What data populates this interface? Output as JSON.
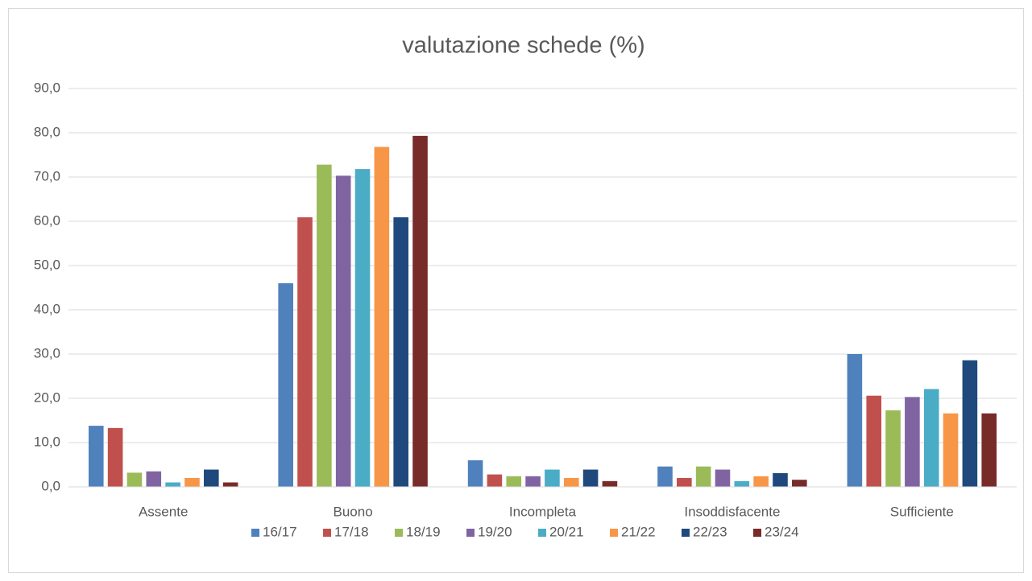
{
  "chart_data": {
    "type": "bar",
    "title": "valutazione schede (%)",
    "categories": [
      "Assente",
      "Buono",
      "Incompleta",
      "Insoddisfacente",
      "Sufficiente"
    ],
    "series": [
      {
        "name": "16/17",
        "color": "#4f81bd",
        "values": [
          13.8,
          46.0,
          6.0,
          4.6,
          30.0
        ]
      },
      {
        "name": "17/18",
        "color": "#c0504d",
        "values": [
          13.3,
          60.9,
          2.8,
          2.0,
          20.6
        ]
      },
      {
        "name": "18/19",
        "color": "#9bbb59",
        "values": [
          3.2,
          72.8,
          2.4,
          4.6,
          17.3
        ]
      },
      {
        "name": "19/20",
        "color": "#8064a2",
        "values": [
          3.5,
          70.3,
          2.4,
          3.9,
          20.3
        ]
      },
      {
        "name": "20/21",
        "color": "#4bacc6",
        "values": [
          1.0,
          71.8,
          3.9,
          1.3,
          22.1
        ]
      },
      {
        "name": "21/22",
        "color": "#f79646",
        "values": [
          2.0,
          76.8,
          2.0,
          2.4,
          16.6
        ]
      },
      {
        "name": "22/23",
        "color": "#1f497d",
        "values": [
          3.9,
          60.9,
          3.9,
          3.1,
          28.6
        ]
      },
      {
        "name": "23/24",
        "color": "#772c2a",
        "values": [
          1.0,
          79.3,
          1.3,
          1.6,
          16.6
        ]
      }
    ],
    "ylim": [
      0,
      90
    ],
    "yticks": [
      {
        "value": 0,
        "label": "0,0"
      },
      {
        "value": 10,
        "label": "10,0"
      },
      {
        "value": 20,
        "label": "20,0"
      },
      {
        "value": 30,
        "label": "30,0"
      },
      {
        "value": 40,
        "label": "40,0"
      },
      {
        "value": 50,
        "label": "50,0"
      },
      {
        "value": 60,
        "label": "60,0"
      },
      {
        "value": 70,
        "label": "70,0"
      },
      {
        "value": 80,
        "label": "80,0"
      },
      {
        "value": 90,
        "label": "90,0"
      }
    ],
    "grid": true,
    "legend": "bottom"
  }
}
